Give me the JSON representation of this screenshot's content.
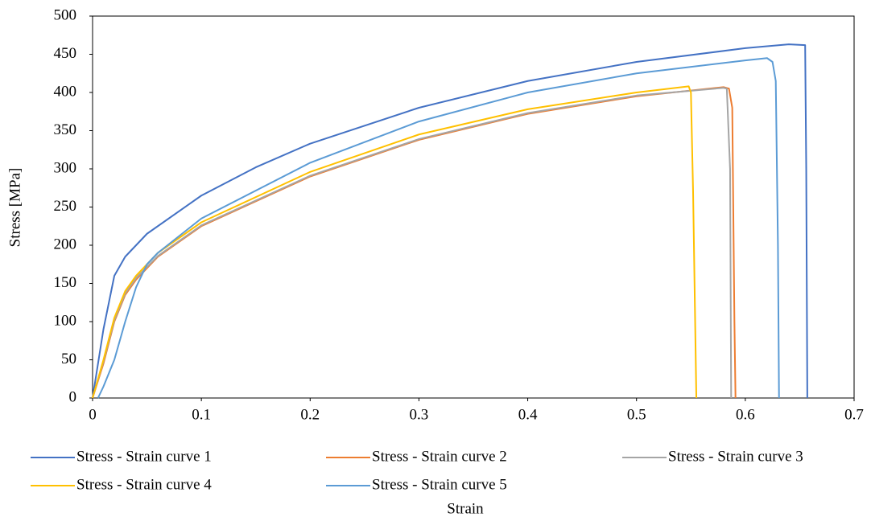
{
  "chart_data": {
    "type": "line",
    "x_label": "Strain",
    "y_label": "Stress [MPa]",
    "xlim": [
      0,
      0.7
    ],
    "xticks": [
      0,
      0.1,
      0.2,
      0.3,
      0.4,
      0.5,
      0.6,
      0.7
    ],
    "ylim": [
      0,
      500
    ],
    "yticks": [
      0,
      50,
      100,
      150,
      200,
      250,
      300,
      350,
      400,
      450,
      500
    ],
    "grid": false,
    "legend": "bottom",
    "series": [
      {
        "name": "Stress - Strain curve 1",
        "color": "#4472c4",
        "x": [
          0,
          0.01,
          0.02,
          0.03,
          0.05,
          0.1,
          0.15,
          0.2,
          0.3,
          0.4,
          0.5,
          0.6,
          0.64,
          0.655,
          0.656,
          0.657
        ],
        "values": [
          0,
          90,
          160,
          185,
          215,
          265,
          302,
          333,
          380,
          415,
          440,
          458,
          463,
          462,
          300,
          0
        ]
      },
      {
        "name": "Stress - Strain curve 2",
        "color": "#ed7d31",
        "x": [
          0,
          0.01,
          0.02,
          0.03,
          0.04,
          0.06,
          0.1,
          0.2,
          0.3,
          0.4,
          0.5,
          0.58,
          0.585,
          0.588,
          0.59,
          0.591
        ],
        "values": [
          0,
          45,
          100,
          135,
          155,
          185,
          225,
          290,
          338,
          372,
          395,
          407,
          405,
          380,
          100,
          0
        ]
      },
      {
        "name": "Stress - Strain curve 3",
        "color": "#a5a5a5",
        "x": [
          0,
          0.01,
          0.02,
          0.03,
          0.04,
          0.06,
          0.1,
          0.2,
          0.3,
          0.4,
          0.5,
          0.58,
          0.583,
          0.586,
          0.587
        ],
        "values": [
          0,
          48,
          102,
          137,
          157,
          186,
          226,
          291,
          339,
          373,
          396,
          406,
          405,
          300,
          0
        ]
      },
      {
        "name": "Stress - Strain curve 4",
        "color": "#ffc000",
        "x": [
          0,
          0.01,
          0.02,
          0.03,
          0.04,
          0.06,
          0.1,
          0.2,
          0.3,
          0.4,
          0.5,
          0.548,
          0.55,
          0.552,
          0.555
        ],
        "values": [
          0,
          50,
          105,
          140,
          160,
          190,
          230,
          296,
          345,
          378,
          400,
          408,
          400,
          270,
          0
        ]
      },
      {
        "name": "Stress - Strain curve 5",
        "color": "#5b9bd5",
        "x": [
          0.005,
          0.01,
          0.02,
          0.03,
          0.04,
          0.05,
          0.06,
          0.1,
          0.2,
          0.3,
          0.4,
          0.5,
          0.6,
          0.62,
          0.625,
          0.628,
          0.63,
          0.631
        ],
        "values": [
          0,
          15,
          50,
          100,
          145,
          175,
          190,
          235,
          308,
          362,
          400,
          425,
          442,
          445,
          440,
          415,
          200,
          0
        ]
      }
    ]
  }
}
